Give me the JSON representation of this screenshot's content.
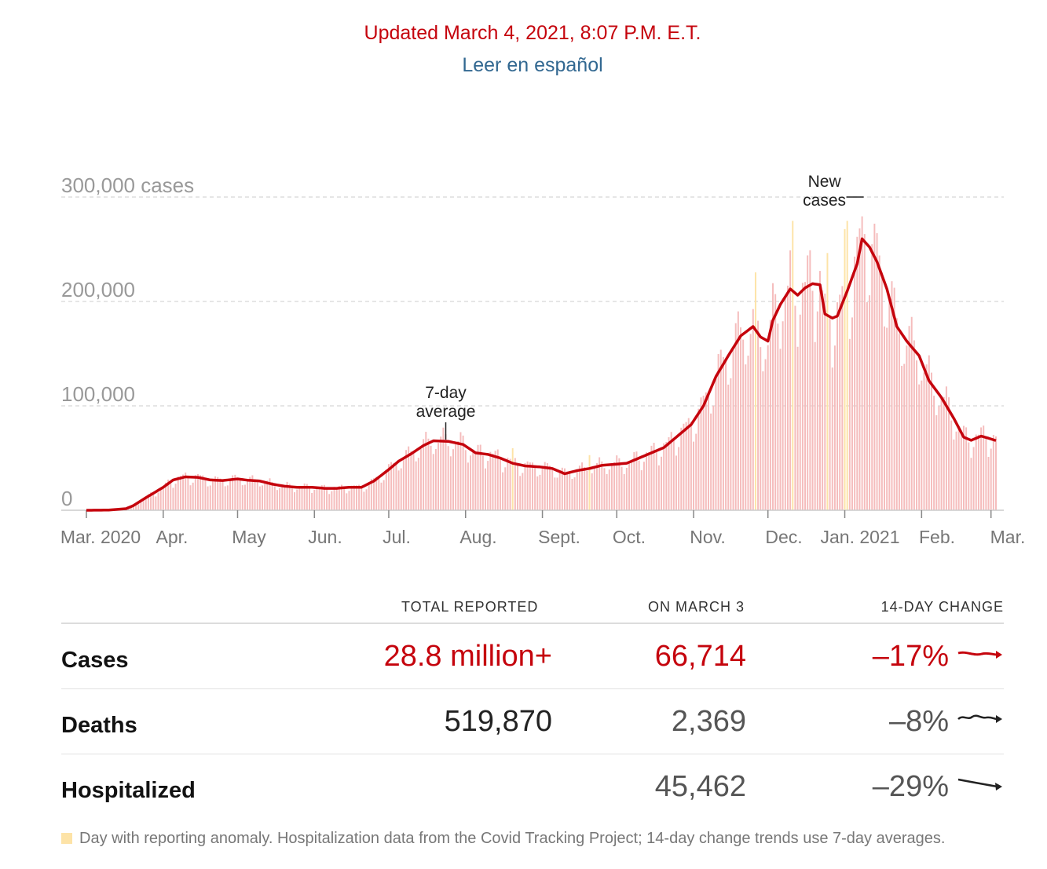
{
  "header": {
    "updated": "Updated March 4, 2021, 8:07 P.M. E.T.",
    "spanish_link": "Leer en español"
  },
  "colors": {
    "red": "#c5040d",
    "bar": "#f5bcbc",
    "anomaly": "#fde3a7",
    "link": "#326891",
    "grid": "#dddddd"
  },
  "chart_data": {
    "type": "bar",
    "ylim": [
      0,
      300000
    ],
    "y_ticks": [
      {
        "value": 0,
        "label": "0"
      },
      {
        "value": 100000,
        "label": "100,000"
      },
      {
        "value": 200000,
        "label": "200,000"
      },
      {
        "value": 300000,
        "label": "300,000 cases"
      }
    ],
    "x_ticks": [
      "Mar. 2020",
      "Apr.",
      "May",
      "Jun.",
      "Jul.",
      "Aug.",
      "Sept.",
      "Oct.",
      "Nov.",
      "Dec.",
      "Jan. 2021",
      "Feb.",
      "Mar."
    ],
    "x_range": [
      "2020-03-01",
      "2021-03-03"
    ],
    "annotations": {
      "average": "7-day average",
      "new_cases": "New cases",
      "average_date": "2020-07-24",
      "new_cases_date": "2021-01-08"
    },
    "anomaly_dates": [
      "2020-08-20",
      "2020-09-20",
      "2020-11-26",
      "2020-12-11",
      "2020-12-25",
      "2021-01-01",
      "2021-01-02"
    ],
    "series": [
      {
        "name": "7-day average",
        "values": [
          [
            "2020-03-01",
            0
          ],
          [
            "2020-03-10",
            200
          ],
          [
            "2020-03-17",
            1500
          ],
          [
            "2020-03-20",
            4500
          ],
          [
            "2020-03-25",
            12000
          ],
          [
            "2020-04-01",
            22000
          ],
          [
            "2020-04-05",
            29000
          ],
          [
            "2020-04-10",
            32000
          ],
          [
            "2020-04-15",
            31500
          ],
          [
            "2020-04-20",
            29000
          ],
          [
            "2020-04-25",
            28500
          ],
          [
            "2020-05-01",
            30000
          ],
          [
            "2020-05-05",
            28800
          ],
          [
            "2020-05-10",
            28000
          ],
          [
            "2020-05-15",
            25000
          ],
          [
            "2020-05-20",
            23000
          ],
          [
            "2020-05-25",
            22000
          ],
          [
            "2020-05-31",
            22000
          ],
          [
            "2020-06-05",
            21000
          ],
          [
            "2020-06-10",
            21000
          ],
          [
            "2020-06-15",
            22000
          ],
          [
            "2020-06-20",
            22000
          ],
          [
            "2020-06-25",
            28000
          ],
          [
            "2020-07-01",
            39000
          ],
          [
            "2020-07-05",
            47000
          ],
          [
            "2020-07-10",
            54000
          ],
          [
            "2020-07-15",
            62000
          ],
          [
            "2020-07-19",
            66500
          ],
          [
            "2020-07-25",
            66000
          ],
          [
            "2020-07-31",
            63000
          ],
          [
            "2020-08-05",
            55000
          ],
          [
            "2020-08-10",
            53500
          ],
          [
            "2020-08-15",
            50000
          ],
          [
            "2020-08-20",
            45000
          ],
          [
            "2020-08-25",
            42500
          ],
          [
            "2020-08-31",
            41500
          ],
          [
            "2020-09-05",
            40000
          ],
          [
            "2020-09-10",
            35000
          ],
          [
            "2020-09-15",
            38000
          ],
          [
            "2020-09-20",
            40000
          ],
          [
            "2020-09-25",
            43000
          ],
          [
            "2020-09-30",
            44000
          ],
          [
            "2020-10-05",
            45000
          ],
          [
            "2020-10-10",
            50000
          ],
          [
            "2020-10-15",
            55000
          ],
          [
            "2020-10-20",
            60000
          ],
          [
            "2020-10-25",
            70000
          ],
          [
            "2020-10-31",
            82000
          ],
          [
            "2020-11-05",
            100000
          ],
          [
            "2020-11-10",
            128000
          ],
          [
            "2020-11-15",
            148000
          ],
          [
            "2020-11-20",
            167000
          ],
          [
            "2020-11-25",
            176000
          ],
          [
            "2020-11-28",
            166000
          ],
          [
            "2020-12-01",
            162000
          ],
          [
            "2020-12-03",
            182000
          ],
          [
            "2020-12-06",
            197000
          ],
          [
            "2020-12-10",
            212000
          ],
          [
            "2020-12-13",
            206000
          ],
          [
            "2020-12-16",
            213000
          ],
          [
            "2020-12-19",
            217000
          ],
          [
            "2020-12-22",
            216000
          ],
          [
            "2020-12-24",
            188000
          ],
          [
            "2020-12-27",
            184000
          ],
          [
            "2020-12-29",
            186000
          ],
          [
            "2021-01-02",
            210000
          ],
          [
            "2021-01-06",
            236000
          ],
          [
            "2021-01-08",
            260000
          ],
          [
            "2021-01-11",
            252000
          ],
          [
            "2021-01-14",
            238000
          ],
          [
            "2021-01-18",
            212000
          ],
          [
            "2021-01-22",
            176000
          ],
          [
            "2021-01-26",
            162000
          ],
          [
            "2021-01-31",
            148000
          ],
          [
            "2021-02-04",
            124000
          ],
          [
            "2021-02-09",
            108000
          ],
          [
            "2021-02-14",
            88000
          ],
          [
            "2021-02-18",
            70000
          ],
          [
            "2021-02-21",
            67000
          ],
          [
            "2021-02-25",
            71000
          ],
          [
            "2021-02-28",
            69000
          ],
          [
            "2021-03-03",
            66714
          ]
        ]
      }
    ]
  },
  "table": {
    "headers": {
      "total": "TOTAL REPORTED",
      "onday": "ON MARCH 3",
      "change": "14-DAY CHANGE"
    },
    "rows": [
      {
        "metric": "Cases",
        "total": "28.8 million+",
        "onday": "66,714",
        "change": "–17%",
        "trend_color": "#c5040d"
      },
      {
        "metric": "Deaths",
        "total": "519,870",
        "onday": "2,369",
        "change": "–8%",
        "trend_color": "#222222"
      },
      {
        "metric": "Hospitalized",
        "total": "",
        "onday": "45,462",
        "change": "–29%",
        "trend_color": "#222222"
      }
    ]
  },
  "footnote": "Day with reporting anomaly. Hospitalization data from the Covid Tracking Project; 14-day change trends use 7-day averages."
}
